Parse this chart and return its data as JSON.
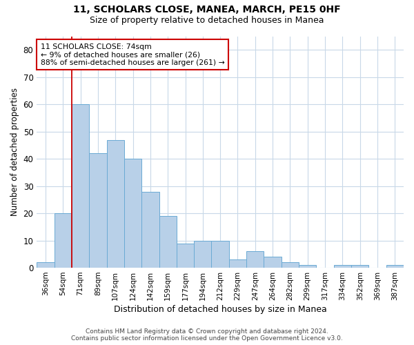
{
  "title": "11, SCHOLARS CLOSE, MANEA, MARCH, PE15 0HF",
  "subtitle": "Size of property relative to detached houses in Manea",
  "xlabel": "Distribution of detached houses by size in Manea",
  "ylabel": "Number of detached properties",
  "categories": [
    "36sqm",
    "54sqm",
    "71sqm",
    "89sqm",
    "107sqm",
    "124sqm",
    "142sqm",
    "159sqm",
    "177sqm",
    "194sqm",
    "212sqm",
    "229sqm",
    "247sqm",
    "264sqm",
    "282sqm",
    "299sqm",
    "317sqm",
    "334sqm",
    "352sqm",
    "369sqm",
    "387sqm"
  ],
  "values": [
    2,
    20,
    60,
    42,
    47,
    40,
    28,
    19,
    9,
    10,
    10,
    3,
    6,
    4,
    2,
    1,
    0,
    1,
    1,
    0,
    1
  ],
  "bar_color": "#b8d0e8",
  "bar_edge_color": "#6aaad4",
  "vline_x_index": 2,
  "vline_color": "#cc0000",
  "annotation_text": "11 SCHOLARS CLOSE: 74sqm\n← 9% of detached houses are smaller (26)\n88% of semi-detached houses are larger (261) →",
  "annotation_box_color": "#ffffff",
  "annotation_box_edge": "#cc0000",
  "ylim": [
    0,
    85
  ],
  "yticks": [
    0,
    10,
    20,
    30,
    40,
    50,
    60,
    70,
    80
  ],
  "footnote": "Contains HM Land Registry data © Crown copyright and database right 2024.\nContains public sector information licensed under the Open Government Licence v3.0.",
  "background_color": "#ffffff",
  "grid_color": "#c8d8e8"
}
